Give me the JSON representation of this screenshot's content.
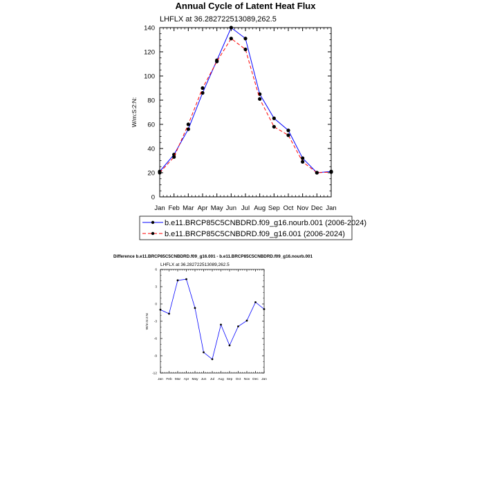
{
  "page": {
    "title": "Annual Cycle of Latent Heat Flux",
    "diff_title": "Difference b.e11.BRCP85C5CNBDRD.f09_g16.001 - b.e11.BRCP85C5CNBDRD.f09_g16.nourb.001"
  },
  "chart_data": [
    {
      "type": "line",
      "subtitle": "LHFLX at 36.282722513089,262.5",
      "ylabel": "W/m:S:2:N:",
      "xlabel": "",
      "categories": [
        "Jan",
        "Feb",
        "Mar",
        "Apr",
        "May",
        "Jun",
        "Jul",
        "Aug",
        "Sep",
        "Oct",
        "Nov",
        "Dec",
        "Jan"
      ],
      "ylim": [
        0,
        140
      ],
      "yticks": [
        0,
        20,
        40,
        60,
        80,
        100,
        120,
        140
      ],
      "grid": false,
      "legend_position": "below",
      "series": [
        {
          "name": "b.e11.BRCP85C5CNBDRD.f09_g16.nourb.001 (2006-2024)",
          "color": "#0000ff",
          "dash": "solid",
          "values": [
            21,
            35,
            56,
            86,
            113,
            140,
            131,
            85,
            65,
            55,
            32,
            20,
            21
          ]
        },
        {
          "name": "b.e11.BRCP85C5CNBDRD.f09_g16.001 (2006-2024)",
          "color": "#ff0000",
          "dash": "dashed",
          "values": [
            20,
            33,
            60,
            90,
            112,
            131,
            122,
            81,
            58,
            51,
            29,
            20,
            20.5
          ]
        }
      ]
    },
    {
      "type": "line",
      "subtitle": "LHFLX at 36.282722513089,262.5",
      "ylabel": "W/m:S:2:N:",
      "xlabel": "",
      "categories": [
        "Jan",
        "Feb",
        "Mar",
        "Apr",
        "May",
        "Jun",
        "Jul",
        "Aug",
        "Sep",
        "Oct",
        "Nov",
        "Dec",
        "Jan"
      ],
      "ylim": [
        -12,
        6
      ],
      "yticks": [
        -12,
        -9,
        -6,
        -3,
        0,
        3,
        6
      ],
      "grid": false,
      "series": [
        {
          "color": "#0000ff",
          "values": [
            -1,
            -1.7,
            4.1,
            4.3,
            -0.7,
            -8.4,
            -9.6,
            -3.6,
            -7.2,
            -3.9,
            -2.9,
            0.3,
            -0.9
          ]
        }
      ]
    }
  ]
}
